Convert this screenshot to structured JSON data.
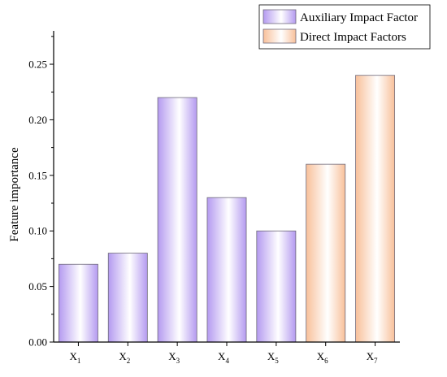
{
  "chart_data": {
    "type": "bar",
    "title": "",
    "xlabel": "",
    "ylabel": "Feature importance",
    "ylim": [
      0,
      0.28
    ],
    "yticks": [
      "0.00",
      "0.05",
      "0.10",
      "0.15",
      "0.20",
      "0.25"
    ],
    "grid": false,
    "legend_position": "top-right",
    "categories": [
      {
        "base": "X",
        "sub": "1"
      },
      {
        "base": "X",
        "sub": "2"
      },
      {
        "base": "X",
        "sub": "3"
      },
      {
        "base": "X",
        "sub": "4"
      },
      {
        "base": "X",
        "sub": "5"
      },
      {
        "base": "X",
        "sub": "6"
      },
      {
        "base": "X",
        "sub": "7"
      }
    ],
    "values": [
      0.07,
      0.08,
      0.22,
      0.13,
      0.1,
      0.16,
      0.24
    ],
    "groups": [
      0,
      0,
      0,
      0,
      0,
      1,
      1
    ],
    "series": [
      {
        "name": "Auxiliary Impact Factor",
        "color": "#b79cf2"
      },
      {
        "name": "Direct Impact Factors",
        "color": "#f7c19b"
      }
    ]
  }
}
